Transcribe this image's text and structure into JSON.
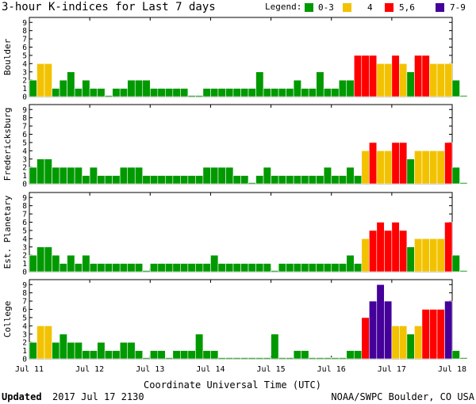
{
  "chart_data": {
    "type": "bar",
    "title": "3-hour K-indices for Last 7 days",
    "legend": {
      "label": "Legend:",
      "placement": "top-right",
      "items": [
        {
          "label": "0-3",
          "color": "#009900"
        },
        {
          "label": "4",
          "color": "#f2c200"
        },
        {
          "label": "5,6",
          "color": "#ff0000"
        },
        {
          "label": "7-9",
          "color": "#440099"
        }
      ]
    },
    "xlabel": "Coordinate Universal Time (UTC)",
    "x_ticks": [
      "Jul 11",
      "Jul 12",
      "Jul 13",
      "Jul 14",
      "Jul 15",
      "Jul 16",
      "Jul 17",
      "Jul 18"
    ],
    "ylim": [
      0,
      9
    ],
    "y_ticks": [
      "0",
      "1",
      "2",
      "3",
      "4",
      "5",
      "6",
      "7",
      "8",
      "9"
    ],
    "bins_per_day": 8,
    "grid": false,
    "series": [
      {
        "name": "Boulder",
        "values": [
          2,
          4,
          4,
          1,
          2,
          3,
          1,
          2,
          1,
          1,
          0,
          1,
          1,
          2,
          2,
          2,
          1,
          1,
          1,
          1,
          1,
          0,
          0,
          1,
          1,
          1,
          1,
          1,
          1,
          1,
          3,
          1,
          1,
          1,
          1,
          2,
          1,
          1,
          3,
          1,
          1,
          2,
          2,
          5,
          5,
          5,
          4,
          4,
          5,
          4,
          3,
          5,
          5,
          4,
          4,
          4,
          2,
          0
        ]
      },
      {
        "name": "Fredericksburg",
        "values": [
          2,
          3,
          3,
          2,
          2,
          2,
          2,
          1,
          2,
          1,
          1,
          1,
          2,
          2,
          2,
          1,
          1,
          1,
          1,
          1,
          1,
          1,
          1,
          2,
          2,
          2,
          2,
          1,
          1,
          0,
          1,
          2,
          1,
          1,
          1,
          1,
          1,
          1,
          1,
          2,
          1,
          1,
          2,
          1,
          4,
          5,
          4,
          4,
          5,
          5,
          3,
          4,
          4,
          4,
          4,
          5,
          2,
          0
        ]
      },
      {
        "name": "Est. Planetary",
        "values": [
          2,
          3,
          3,
          2,
          1,
          2,
          1,
          2,
          1,
          1,
          1,
          1,
          1,
          1,
          1,
          0,
          1,
          1,
          1,
          1,
          1,
          1,
          1,
          1,
          2,
          1,
          1,
          1,
          1,
          1,
          1,
          1,
          0,
          1,
          1,
          1,
          1,
          1,
          1,
          1,
          1,
          1,
          2,
          1,
          4,
          5,
          6,
          5,
          6,
          5,
          3,
          4,
          4,
          4,
          4,
          6,
          2,
          0
        ]
      },
      {
        "name": "College",
        "values": [
          2,
          4,
          4,
          2,
          3,
          2,
          2,
          1,
          1,
          2,
          1,
          1,
          2,
          2,
          1,
          0,
          1,
          1,
          0,
          1,
          1,
          1,
          3,
          1,
          1,
          0,
          0,
          0,
          0,
          0,
          0,
          0,
          3,
          0,
          0,
          1,
          1,
          0,
          0,
          0,
          0,
          0,
          1,
          1,
          5,
          7,
          9,
          7,
          4,
          4,
          3,
          4,
          6,
          6,
          6,
          7,
          1,
          0
        ]
      }
    ]
  },
  "footer": {
    "updated_label": "Updated",
    "updated_value": "2017 Jul 17 2130",
    "source": "NOAA/SWPC Boulder, CO USA"
  }
}
